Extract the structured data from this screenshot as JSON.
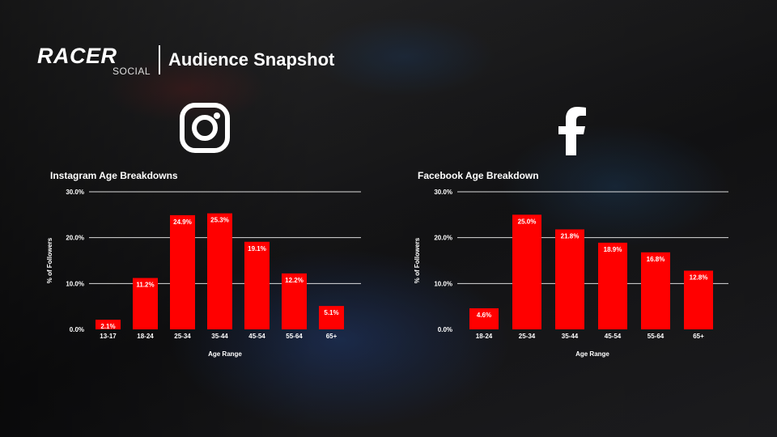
{
  "header": {
    "logo_main": "RACER",
    "logo_sub": "SOCIAL",
    "title": "Audience Snapshot"
  },
  "icons": {
    "instagram": "instagram-icon",
    "facebook": "facebook-icon"
  },
  "colors": {
    "bar": "#ff0000",
    "text": "#ffffff",
    "grid": "#ffffff"
  },
  "chart_data": [
    {
      "type": "bar",
      "title": "Instagram Age Breakdowns",
      "xlabel": "Age Range",
      "ylabel": "% of Followers",
      "ylim": [
        0,
        30
      ],
      "yticks": [
        "0.0%",
        "10.0%",
        "20.0%",
        "30.0%"
      ],
      "grid": true,
      "categories": [
        "13-17",
        "18-24",
        "25-34",
        "35-44",
        "45-54",
        "55-64",
        "65+"
      ],
      "values": [
        2.1,
        11.2,
        24.9,
        25.3,
        19.1,
        12.2,
        5.1
      ],
      "data_labels": [
        "2.1%",
        "11.2%",
        "24.9%",
        "25.3%",
        "19.1%",
        "12.2%",
        "5.1%"
      ]
    },
    {
      "type": "bar",
      "title": "Facebook Age Breakdown",
      "xlabel": "Age Range",
      "ylabel": "% of Followers",
      "ylim": [
        0,
        30
      ],
      "yticks": [
        "0.0%",
        "10.0%",
        "20.0%",
        "30.0%"
      ],
      "grid": true,
      "categories": [
        "18-24",
        "25-34",
        "35-44",
        "45-54",
        "55-64",
        "65+"
      ],
      "values": [
        4.6,
        25.0,
        21.8,
        18.9,
        16.8,
        12.8
      ],
      "data_labels": [
        "4.6%",
        "25.0%",
        "21.8%",
        "18.9%",
        "16.8%",
        "12.8%"
      ]
    }
  ]
}
